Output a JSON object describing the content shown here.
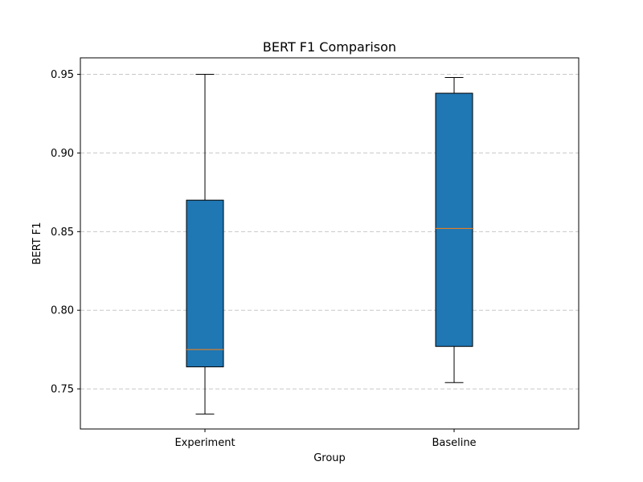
{
  "chart_data": {
    "type": "box",
    "title": "BERT F1 Comparison",
    "xlabel": "Group",
    "ylabel": "BERT F1",
    "categories": [
      "Experiment",
      "Baseline"
    ],
    "boxes": [
      {
        "name": "Experiment",
        "whisker_low": 0.734,
        "q1": 0.764,
        "median": 0.775,
        "q3": 0.87,
        "whisker_high": 0.95
      },
      {
        "name": "Baseline",
        "whisker_low": 0.754,
        "q1": 0.777,
        "median": 0.852,
        "q3": 0.938,
        "whisker_high": 0.948
      }
    ],
    "ylim": [
      0.7245,
      0.9605
    ],
    "yticks": [
      0.75,
      0.8,
      0.85,
      0.9,
      0.95
    ],
    "ytick_labels": [
      "0.75",
      "0.80",
      "0.85",
      "0.90",
      "0.95"
    ],
    "grid": "y-dashed",
    "colors": {
      "box_fill": "#1f77b4",
      "median": "#ff7f0e",
      "grid": "#c8c8c8",
      "edge": "#000000"
    }
  }
}
